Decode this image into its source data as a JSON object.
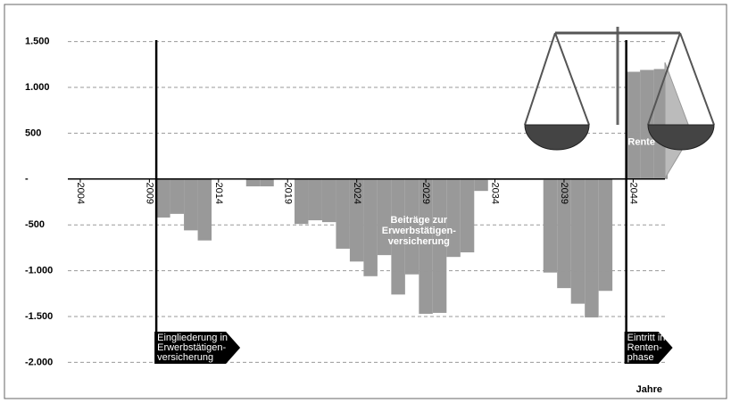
{
  "chart_data": {
    "type": "bar",
    "x": [
      2009.5,
      2010.5,
      2011.5,
      2012.5,
      2016,
      2017,
      2019.5,
      2020.5,
      2021.5,
      2022.5,
      2023.5,
      2024.5,
      2025.5,
      2026.5,
      2027.5,
      2028.5,
      2029.5,
      2030.5,
      2031.5,
      2032.5,
      2033.5,
      2034.5,
      2035.5,
      2036.5,
      2037.5,
      2038.5,
      2039.5,
      2040.5,
      2041.5,
      2043.5,
      2044.5,
      2045.5
    ],
    "values": [
      -420,
      -380,
      -560,
      -670,
      -80,
      -80,
      -490,
      -450,
      -470,
      -760,
      -900,
      -1060,
      -830,
      -1260,
      -1040,
      -1470,
      -1460,
      -850,
      -800,
      -130,
      -10,
      -10,
      -10,
      -10,
      -1020,
      -1190,
      -1360,
      -1510,
      -1220,
      1170,
      1190,
      1200
    ],
    "color": "#999999",
    "xlim": [
      2003.1,
      2046.3
    ],
    "xticks": [
      2004,
      2009,
      2014,
      2019,
      2024,
      2029,
      2034,
      2039,
      2044
    ],
    "ylim": [
      -2200,
      1700
    ],
    "yticks": [
      {
        "value": 1500,
        "label": "1.500"
      },
      {
        "value": 1000,
        "label": "1.000"
      },
      500,
      {
        "value": 0,
        "label": "-"
      },
      -500,
      {
        "value": -1000,
        "label": "-1.000"
      },
      {
        "value": -1500,
        "label": "-1.500"
      },
      {
        "value": -2000,
        "label": "-2.000"
      }
    ],
    "grid": true,
    "x_label": "Jahre",
    "markers": [
      {
        "x": 2009.5,
        "label": [
          "Eingliederung in",
          "Erwerbstätigen-",
          "versicherung"
        ]
      },
      {
        "x": 2043.5,
        "label": [
          "Eintritt in",
          "Renten-",
          "phase"
        ]
      }
    ],
    "annotations": [
      {
        "x": 2028.5,
        "y": -450,
        "text": [
          "Beiträge zur",
          "Erwerbstätigen-",
          "versicherung"
        ]
      },
      {
        "x": 2044.6,
        "y": 400,
        "text": [
          "Rente"
        ]
      }
    ]
  }
}
